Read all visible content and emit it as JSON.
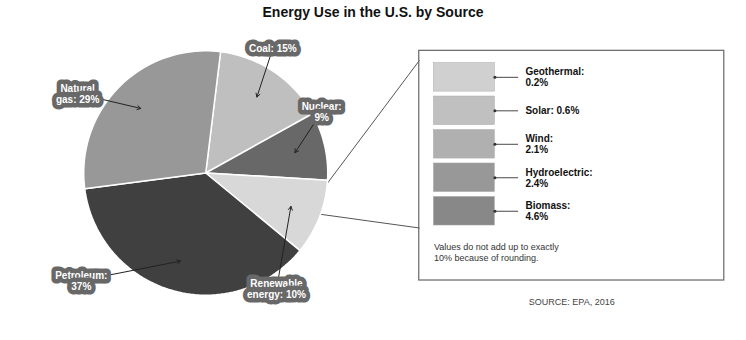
{
  "chart_data": {
    "type": "pie",
    "title": "Energy Use in the U.S. by Source",
    "values": [
      15,
      9,
      10,
      37,
      29
    ],
    "value_labels": [
      "Coal: 15%",
      "Nuclear:\n9%",
      "Renewable\nenergy: 10%",
      "Petroleum:\n37%",
      "Natural\ngas: 29%"
    ],
    "colors": [
      "#c0bfbf",
      "#686868",
      "#d8d8d8",
      "#404040",
      "#989898"
    ],
    "data_labels": true,
    "breakdown": {
      "labels": [
        "Geothermal:\n0.2%",
        "Solar: 0.6%",
        "Wind:\n2.1%",
        "Hydroelectric:\n2.4%",
        "Biomass:\n4.6%"
      ],
      "colors": [
        "#d0d0d0",
        "#c0c0c0",
        "#b0b0b0",
        "#989898",
        "#888888"
      ]
    },
    "note": "Values do not add up to exactly\n10% because of rounding.",
    "source": "SOURCE: EPA, 2016"
  }
}
